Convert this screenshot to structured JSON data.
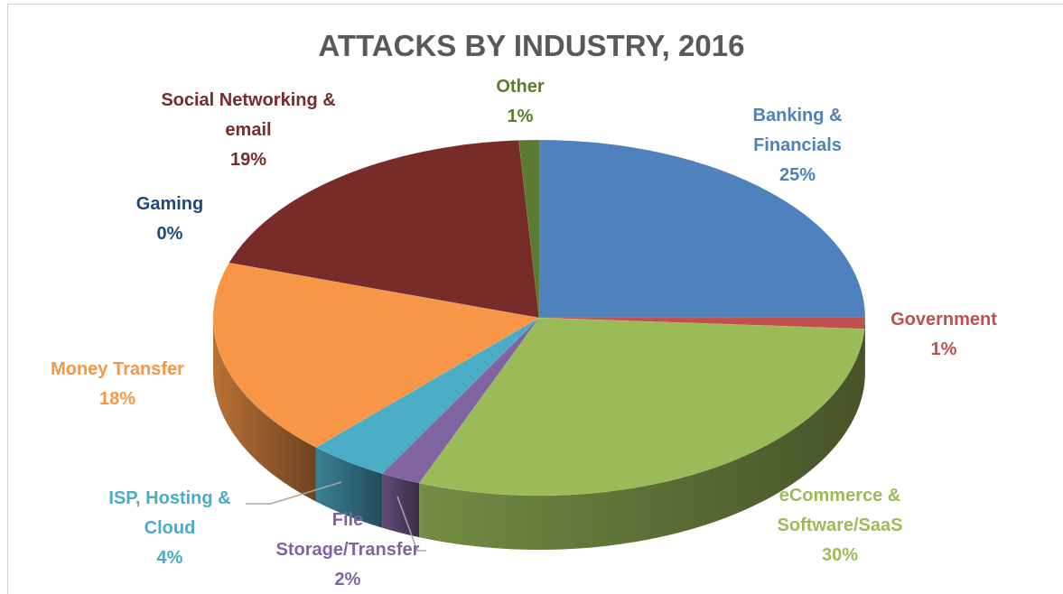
{
  "chart_data": {
    "type": "pie",
    "title": "ATTACKS BY INDUSTRY, 2016",
    "categories": [
      "Banking & Financials",
      "Government",
      "eCommerce & Software/SaaS",
      "File Storage/Transfer",
      "ISP, Hosting & Cloud",
      "Money Transfer",
      "Gaming",
      "Social Networking & email",
      "Other"
    ],
    "values": [
      25,
      1,
      30,
      2,
      4,
      18,
      0,
      19,
      1
    ],
    "value_labels": [
      "25%",
      "1%",
      "30%",
      "2%",
      "4%",
      "18%",
      "0%",
      "19%",
      "1%"
    ],
    "colors": [
      "#4f81bd",
      "#c0504d",
      "#9bbb59",
      "#8064a2",
      "#4bacc6",
      "#f79646",
      "#1f497d",
      "#772c2a",
      "#5b7b2e"
    ]
  }
}
